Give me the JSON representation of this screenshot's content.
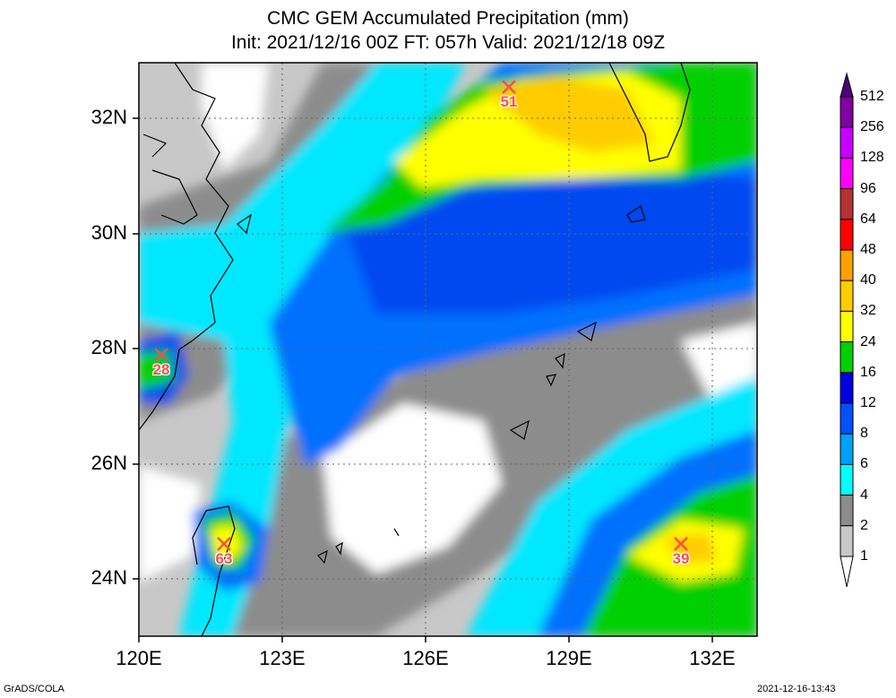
{
  "title_line1": "CMC GEM Accumulated Precipitation (mm)",
  "title_line2": "Init: 2021/12/16 00Z  FT: 057h  Valid: 2021/12/18 09Z",
  "lat_labels": [
    "32N",
    "30N",
    "28N",
    "26N",
    "24N"
  ],
  "lon_labels": [
    "120E",
    "123E",
    "126E",
    "129E",
    "132E"
  ],
  "legend": {
    "levels": [
      "512",
      "256",
      "128",
      "96",
      "64",
      "48",
      "40",
      "32",
      "24",
      "16",
      "12",
      "8",
      "6",
      "4",
      "2",
      "1"
    ],
    "colors": [
      "#ffffff",
      "#c8c8c8",
      "#8c8c8c",
      "#00ffff",
      "#00a0ff",
      "#0050ff",
      "#0000e0",
      "#00d000",
      "#ffff00",
      "#ffcc00",
      "#ffa000",
      "#ff0000",
      "#b43232",
      "#ff00ff",
      "#c800ff",
      "#8000a0",
      "#50007a"
    ]
  },
  "stations": [
    {
      "label": "51"
    },
    {
      "label": "28"
    },
    {
      "label": "63"
    },
    {
      "label": "39"
    }
  ],
  "footer_left": "GrADS/COLA",
  "footer_right": "2021-12-16-13:43"
}
